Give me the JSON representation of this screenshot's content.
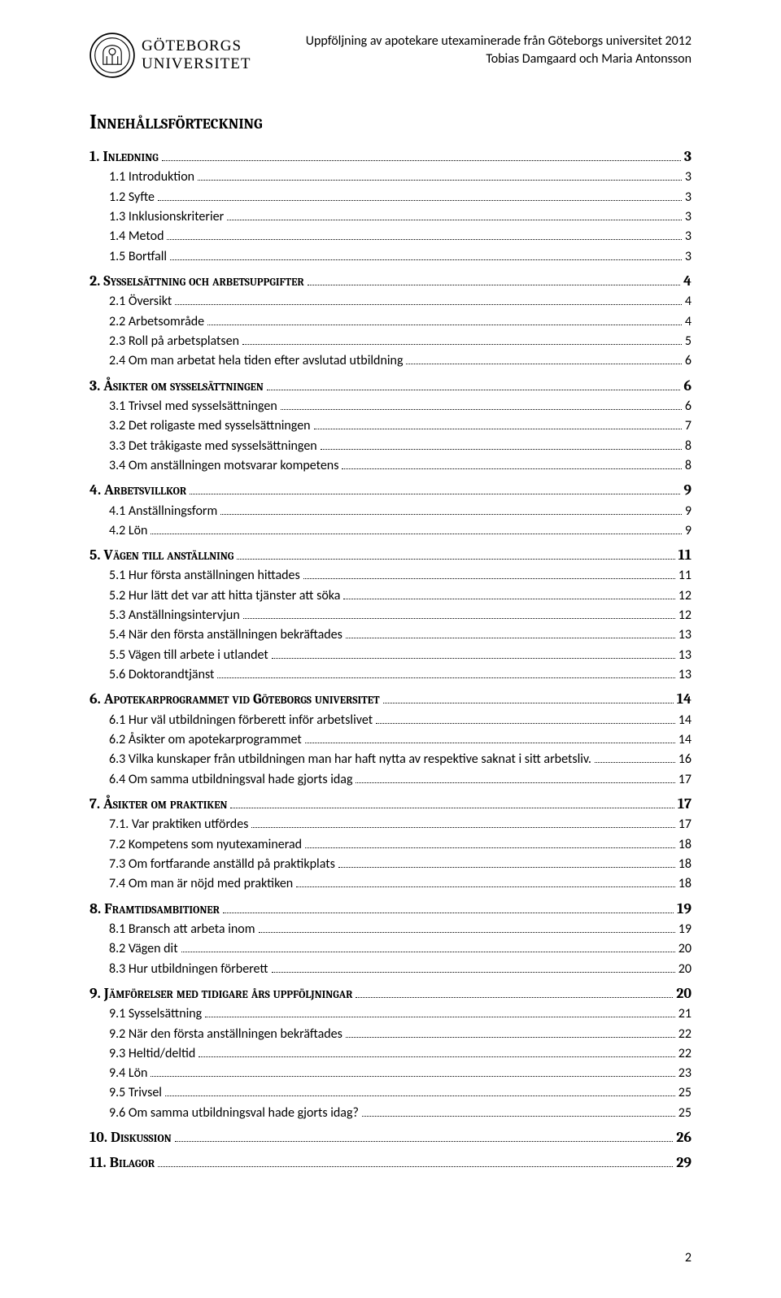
{
  "header": {
    "logo_line1": "GÖTEBORGS",
    "logo_line2": "UNIVERSITET",
    "right_line1": "Uppföljning av apotekare utexaminerade från Göteborgs universitet 2012",
    "right_line2": "Tobias Damgaard och Maria Antonsson"
  },
  "title": "Innehållsförteckning",
  "page_number": "2",
  "colors": {
    "text": "#000000",
    "background": "#ffffff",
    "dots": "#000000"
  },
  "toc": [
    {
      "level": 1,
      "label": "1. Inledning",
      "page": "3"
    },
    {
      "level": 2,
      "label": "1.1 Introduktion",
      "page": "3"
    },
    {
      "level": 2,
      "label": "1.2 Syfte",
      "page": "3"
    },
    {
      "level": 2,
      "label": "1.3 Inklusionskriterier",
      "page": "3"
    },
    {
      "level": 2,
      "label": "1.4 Metod",
      "page": "3"
    },
    {
      "level": 2,
      "label": "1.5 Bortfall",
      "page": "3"
    },
    {
      "level": 1,
      "label": "2. Sysselsättning och arbetsuppgifter",
      "page": "4"
    },
    {
      "level": 2,
      "label": "2.1 Översikt",
      "page": "4"
    },
    {
      "level": 2,
      "label": "2.2 Arbetsområde",
      "page": "4"
    },
    {
      "level": 2,
      "label": "2.3 Roll på arbetsplatsen",
      "page": "5"
    },
    {
      "level": 2,
      "label": "2.4 Om man arbetat hela tiden efter avslutad utbildning",
      "page": "6"
    },
    {
      "level": 1,
      "label": "3. Åsikter om sysselsättningen",
      "page": "6"
    },
    {
      "level": 2,
      "label": "3.1 Trivsel med sysselsättningen",
      "page": "6"
    },
    {
      "level": 2,
      "label": "3.2 Det roligaste med sysselsättningen",
      "page": "7"
    },
    {
      "level": 2,
      "label": "3.3 Det tråkigaste med sysselsättningen",
      "page": "8"
    },
    {
      "level": 2,
      "label": "3.4 Om anställningen motsvarar kompetens",
      "page": "8"
    },
    {
      "level": 1,
      "label": "4. Arbetsvillkor",
      "page": "9"
    },
    {
      "level": 2,
      "label": "4.1 Anställningsform",
      "page": "9"
    },
    {
      "level": 2,
      "label": "4.2 Lön",
      "page": "9"
    },
    {
      "level": 1,
      "label": "5. Vägen till anställning",
      "page": "11"
    },
    {
      "level": 2,
      "label": "5.1 Hur första anställningen hittades",
      "page": "11"
    },
    {
      "level": 2,
      "label": "5.2 Hur lätt det var att hitta tjänster att söka",
      "page": "12"
    },
    {
      "level": 2,
      "label": "5.3 Anställningsintervjun",
      "page": "12"
    },
    {
      "level": 2,
      "label": "5.4 När den första anställningen bekräftades",
      "page": "13"
    },
    {
      "level": 2,
      "label": "5.5 Vägen till arbete i utlandet",
      "page": "13"
    },
    {
      "level": 2,
      "label": "5.6 Doktorandtjänst",
      "page": "13"
    },
    {
      "level": 1,
      "label": "6. Apotekarprogrammet vid Göteborgs universitet",
      "page": "14"
    },
    {
      "level": 2,
      "label": "6.1 Hur väl utbildningen förberett inför arbetslivet",
      "page": "14"
    },
    {
      "level": 2,
      "label": "6.2 Åsikter om apotekarprogrammet",
      "page": "14"
    },
    {
      "level": 2,
      "label": "6.3 Vilka kunskaper från utbildningen man har haft nytta av respektive saknat i sitt arbetsliv.",
      "page": "16"
    },
    {
      "level": 2,
      "label": "6.4 Om samma utbildningsval hade gjorts idag",
      "page": "17"
    },
    {
      "level": 1,
      "label": "7. Åsikter om praktiken",
      "page": "17"
    },
    {
      "level": 2,
      "label": "7.1. Var praktiken utfördes",
      "page": "17"
    },
    {
      "level": 2,
      "label": "7.2 Kompetens som nyutexaminerad",
      "page": "18"
    },
    {
      "level": 2,
      "label": "7.3 Om fortfarande anställd på praktikplats",
      "page": "18"
    },
    {
      "level": 2,
      "label": "7.4 Om man är nöjd med praktiken",
      "page": "18"
    },
    {
      "level": 1,
      "label": "8. Framtidsambitioner",
      "page": "19"
    },
    {
      "level": 2,
      "label": "8.1 Bransch att arbeta inom",
      "page": "19"
    },
    {
      "level": 2,
      "label": "8.2 Vägen dit",
      "page": "20"
    },
    {
      "level": 2,
      "label": "8.3 Hur utbildningen förberett",
      "page": "20"
    },
    {
      "level": 1,
      "label": "9. Jämförelser med tidigare års uppföljningar",
      "page": "20"
    },
    {
      "level": 2,
      "label": "9.1 Sysselsättning",
      "page": "21"
    },
    {
      "level": 2,
      "label": "9.2 När den första anställningen bekräftades",
      "page": "22"
    },
    {
      "level": 2,
      "label": "9.3 Heltid/deltid",
      "page": "22"
    },
    {
      "level": 2,
      "label": "9.4 Lön",
      "page": "23"
    },
    {
      "level": 2,
      "label": "9.5 Trivsel",
      "page": "25"
    },
    {
      "level": 2,
      "label": "9.6 Om samma utbildningsval hade gjorts idag?",
      "page": "25"
    },
    {
      "level": 1,
      "label": "10. Diskussion",
      "page": "26"
    },
    {
      "level": 1,
      "label": "11. Bilagor",
      "page": "29"
    }
  ]
}
